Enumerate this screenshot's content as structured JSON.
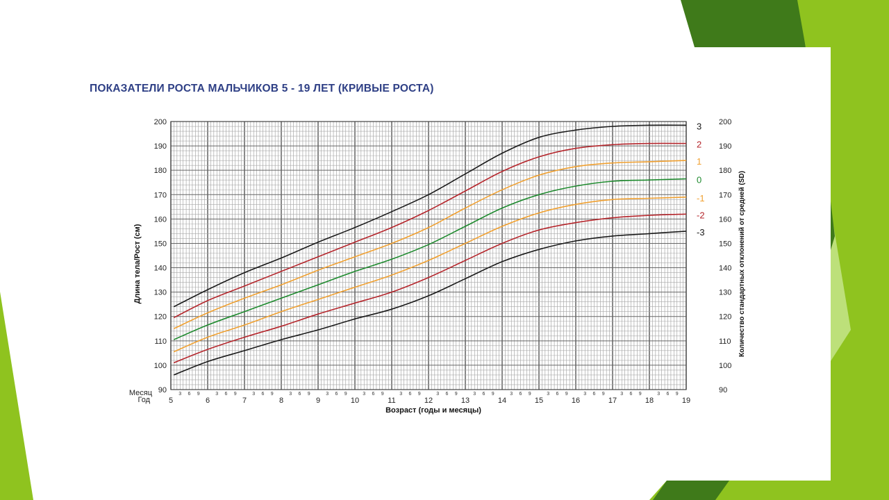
{
  "slide": {
    "colors": {
      "background": "#ffffff",
      "accent_light": "#8fc31f",
      "accent_dark": "#3f7a1a",
      "accent_pale": "#bde07a"
    }
  },
  "chart_data": {
    "type": "line",
    "title": "ПОКАЗАТЕЛИ РОСТА МАЛЬЧИКОВ 5 - 19 ЛЕТ (КРИВЫЕ РОСТА)",
    "xlabel": "Возраст (годы и месяцы)",
    "ylabel": "Длина тела/Рост (см)",
    "ylabel_right": "Количество стандартных отклонений от средней (SD)",
    "row_label_month": "Месяц",
    "row_label_year": "Год",
    "xlim": [
      5,
      19
    ],
    "ylim": [
      90,
      200
    ],
    "y_ticks": [
      90,
      100,
      110,
      120,
      130,
      140,
      150,
      160,
      170,
      180,
      190,
      200
    ],
    "x_year_ticks": [
      "5",
      "6",
      "7",
      "8",
      "9",
      "10",
      "11",
      "12",
      "13",
      "14",
      "15",
      "16",
      "17",
      "18",
      "19"
    ],
    "x_month_ticks": [
      "3",
      "6",
      "9"
    ],
    "grid": true,
    "x": [
      5,
      6,
      7,
      8,
      9,
      10,
      11,
      12,
      13,
      14,
      15,
      16,
      17,
      18,
      19
    ],
    "series": [
      {
        "name": "3",
        "color": "#1a1a1a",
        "values": [
          124,
          131,
          138,
          144,
          150.5,
          156.5,
          163,
          170,
          178.5,
          187,
          193.5,
          196.5,
          198,
          198.5,
          198.5
        ]
      },
      {
        "name": "2",
        "color": "#b5262c",
        "values": [
          119.5,
          126.5,
          132.5,
          138.5,
          144.5,
          150.5,
          156.5,
          163.5,
          171.5,
          179.5,
          185.5,
          189,
          190.5,
          191,
          191
        ]
      },
      {
        "name": "1",
        "color": "#f0a030",
        "values": [
          115,
          121.5,
          127.5,
          133,
          139,
          144.5,
          150,
          156.5,
          164.5,
          172,
          178,
          181.5,
          183,
          183.5,
          184
        ]
      },
      {
        "name": "0",
        "color": "#1e8a2e",
        "values": [
          110.5,
          116.5,
          122,
          127.5,
          133,
          138.5,
          143.5,
          149.5,
          157,
          164.5,
          170,
          173.5,
          175.5,
          176,
          176.5
        ]
      },
      {
        "name": "-1",
        "color": "#f0a030",
        "values": [
          105.5,
          111.5,
          116.5,
          122,
          127,
          132,
          137,
          143,
          150,
          157,
          162.5,
          166,
          168,
          168.5,
          169
        ]
      },
      {
        "name": "-2",
        "color": "#b5262c",
        "values": [
          101,
          106.5,
          111.5,
          116,
          121,
          125.5,
          130,
          136,
          143,
          150,
          155.5,
          158.5,
          160.5,
          161.5,
          162
        ]
      },
      {
        "name": "-3",
        "color": "#1a1a1a",
        "values": [
          96,
          101.5,
          106,
          110.5,
          114.5,
          119,
          123,
          128.5,
          135.5,
          142.5,
          147.5,
          151,
          153,
          154,
          155
        ]
      }
    ]
  }
}
